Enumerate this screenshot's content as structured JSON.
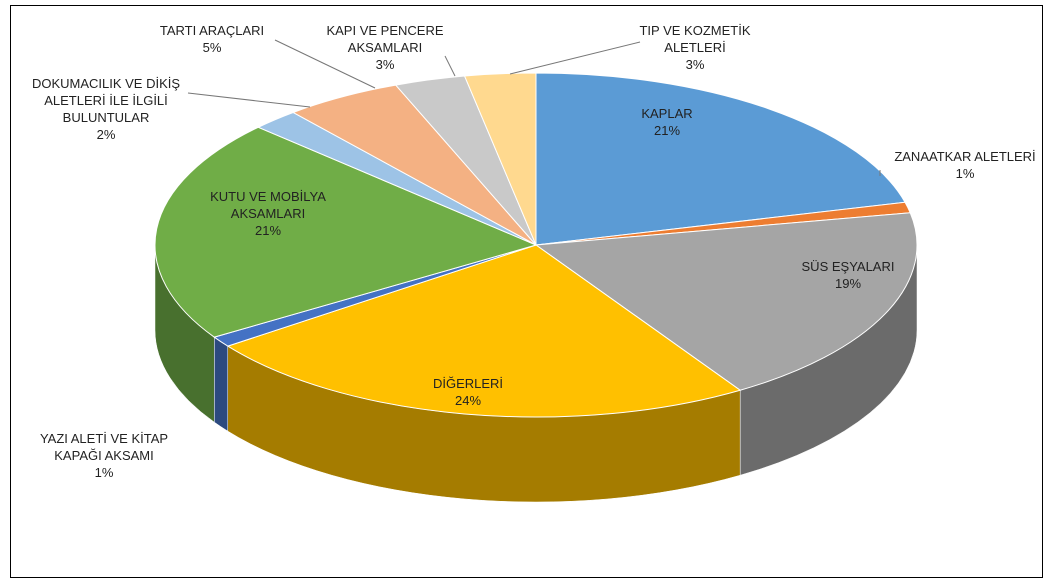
{
  "chart_data": {
    "type": "pie3d",
    "categories": [
      "KAPLAR",
      "ZANAATKAR ALETLERİ",
      "SÜS EŞYALARI",
      "DİĞERLERİ",
      "YAZI ALETİ VE KİTAP KAPAĞI AKSAMI",
      "KUTU VE MOBİLYA AKSAMLARI",
      "DOKUMACILIK VE DİKİŞ ALETLERİ İLE İLGİLİ BULUNTULAR",
      "TARTI ARAÇLARI",
      "KAPI VE PENCERE AKSAMLARI",
      "TIP VE KOZMETİK ALETLERİ"
    ],
    "values": [
      21,
      1,
      19,
      24,
      1,
      21,
      2,
      5,
      3,
      3
    ],
    "value_labels": [
      "21%",
      "1%",
      "19%",
      "24%",
      "1%",
      "21%",
      "2%",
      "5%",
      "3%",
      "3%"
    ],
    "colors": [
      "#5b9bd5",
      "#ed7d31",
      "#a5a5a5",
      "#ffc000",
      "#4472c4",
      "#70ad47",
      "#9dc3e6",
      "#f4b183",
      "#c9c9c9",
      "#ffd98f"
    ]
  }
}
